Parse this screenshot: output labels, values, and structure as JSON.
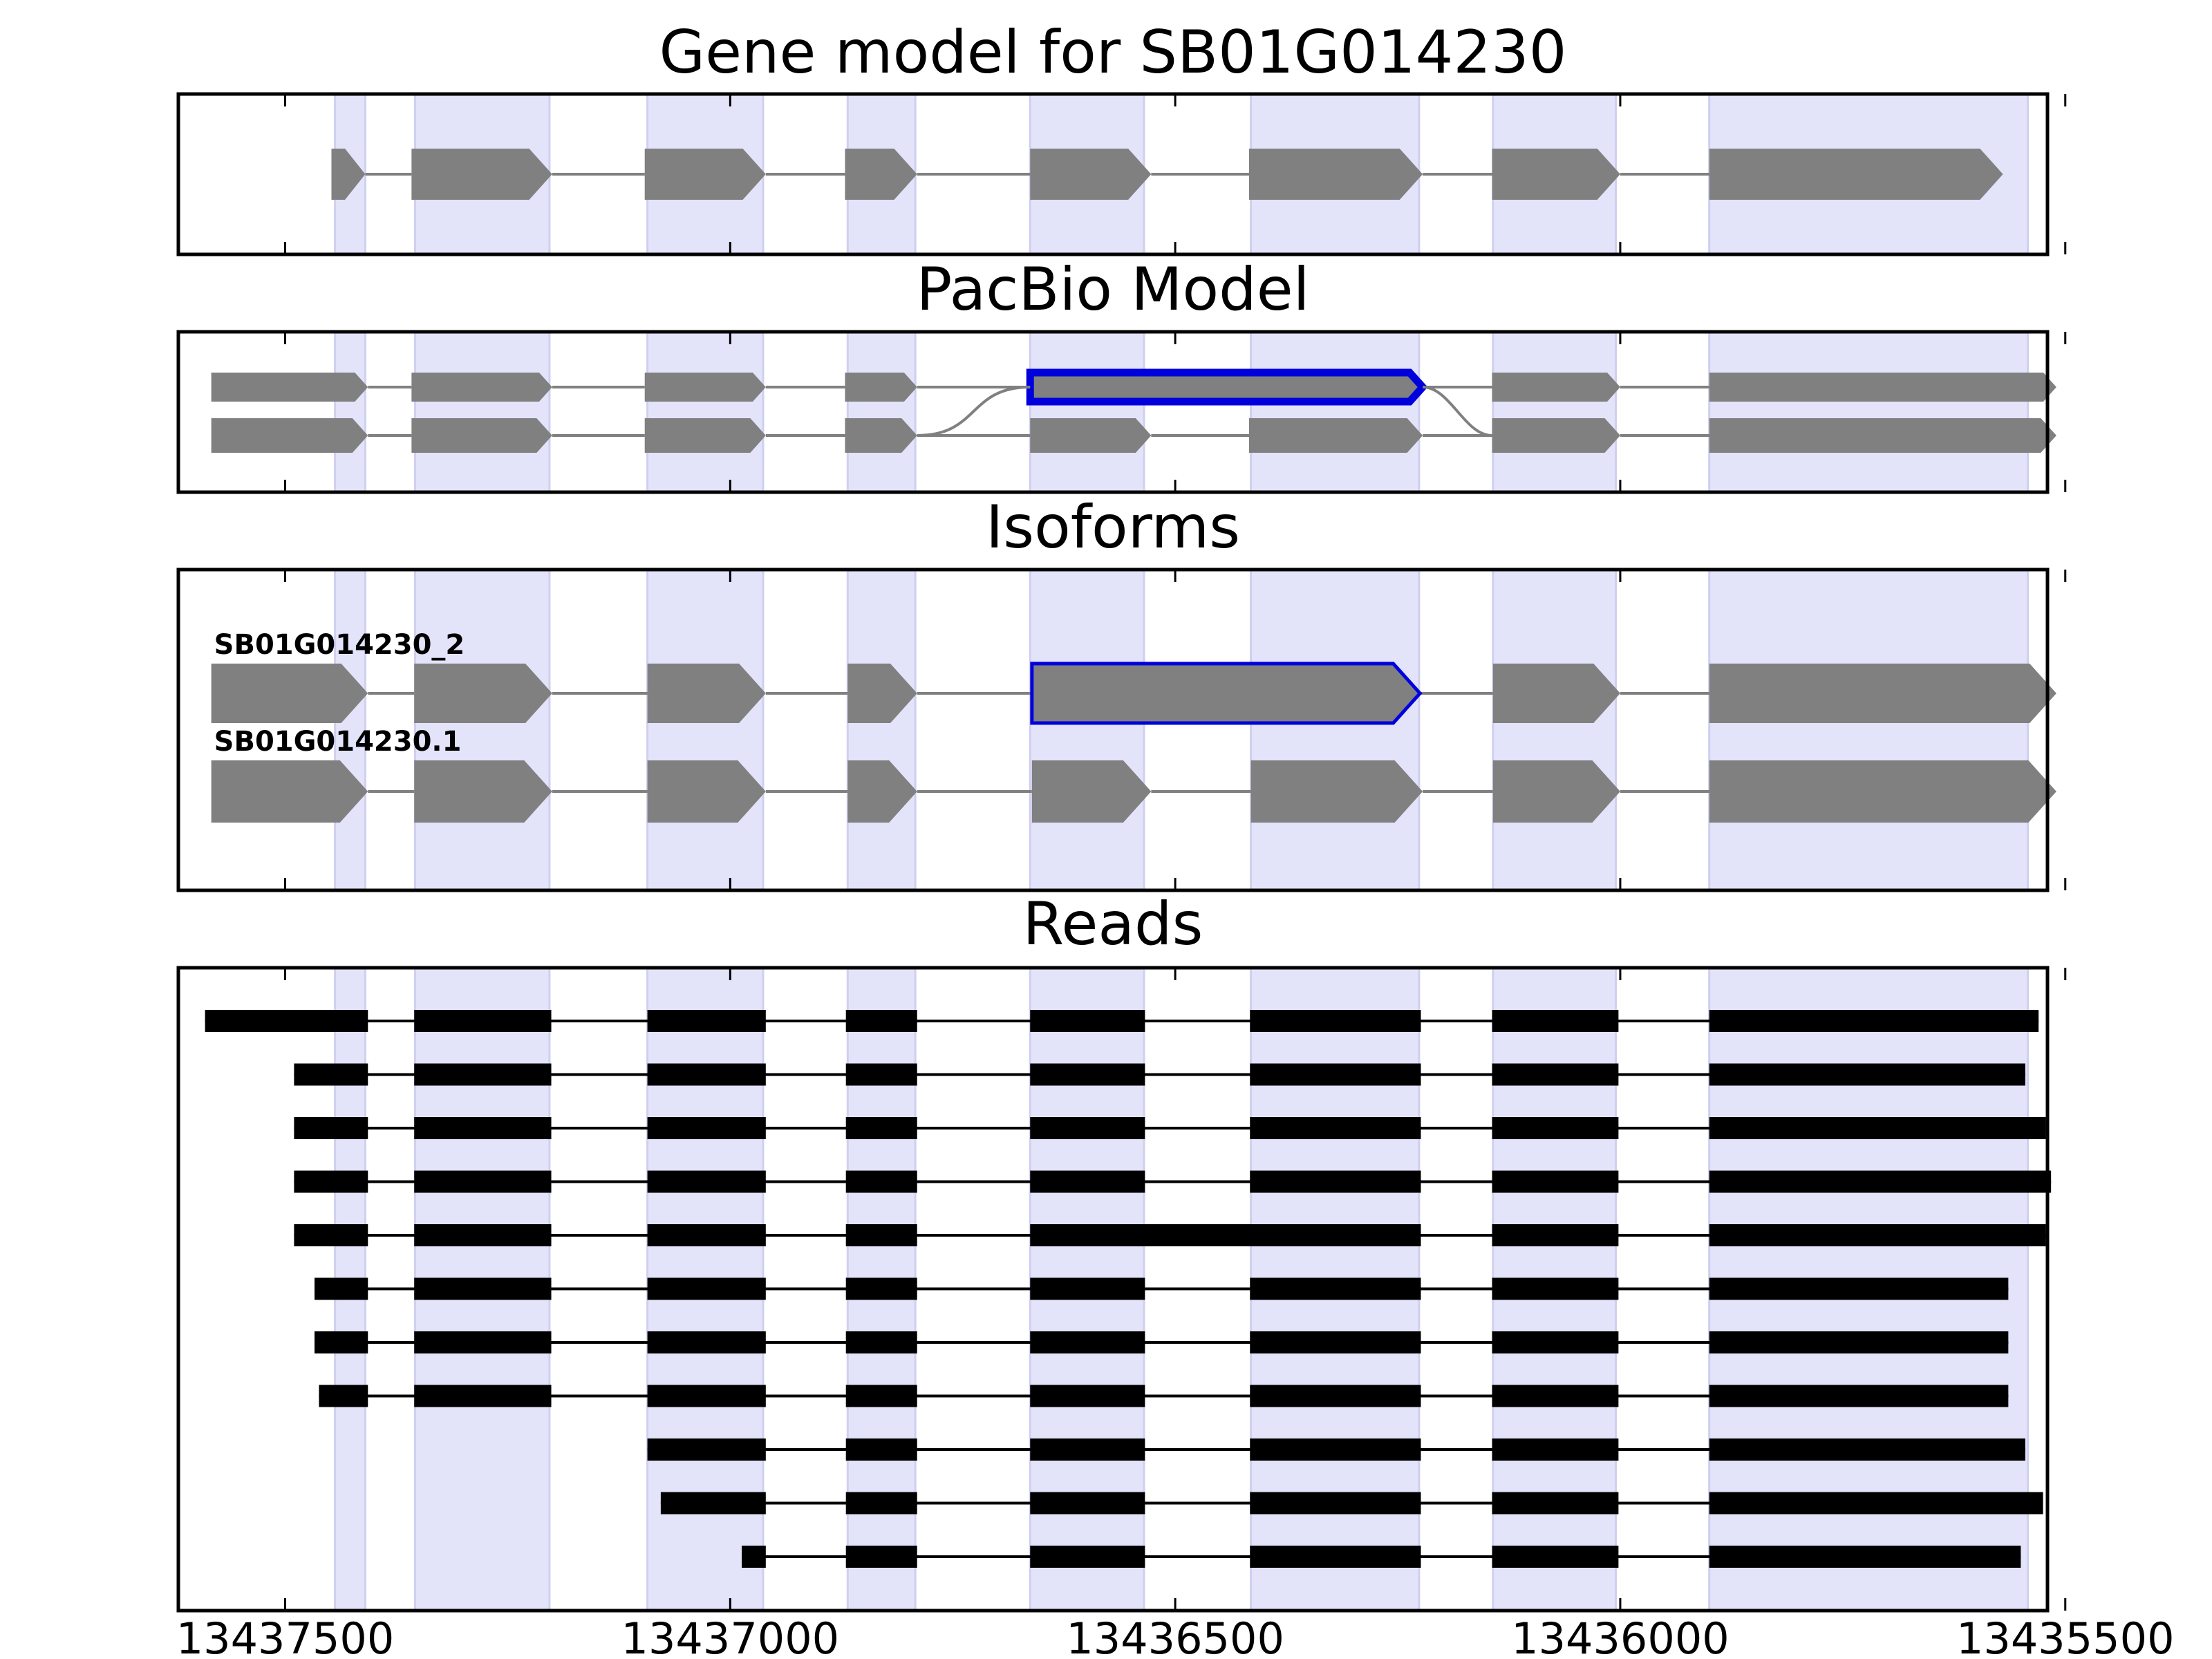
{
  "chart_data": {
    "type": "gene-structure",
    "x_reversed": true,
    "xlim": [
      13437620,
      13435520
    ],
    "xticks": [
      13437500,
      13437000,
      13436500,
      13436000,
      13435500
    ],
    "xtick_labels": [
      "13437500",
      "13437000",
      "13436500",
      "13436000",
      "13435500"
    ],
    "exon_band_color": "#e3e3fa",
    "exon_fill_color": "#808080",
    "highlight_color": "#0000dd",
    "read_color": "#000000",
    "exon_bands": [
      [
        13437444,
        13437410
      ],
      [
        13437354,
        13437203
      ],
      [
        13437093,
        13436963
      ],
      [
        13436868,
        13436792
      ],
      [
        13436663,
        13436535
      ],
      [
        13436415,
        13436226
      ],
      [
        13436143,
        13436005
      ],
      [
        13435900,
        13435542
      ]
    ],
    "panels": [
      {
        "title": "Gene model for SB01G014230",
        "tracks": [
          {
            "label": "",
            "highlight_exon": -1,
            "exons": [
              [
                13437448,
                13437410
              ],
              [
                13437358,
                13437200
              ],
              [
                13437096,
                13436960
              ],
              [
                13436871,
                13436790
              ],
              [
                13436663,
                13436527
              ],
              [
                13436417,
                13436222
              ],
              [
                13436144,
                13436000
              ],
              [
                13435900,
                13435570
              ]
            ]
          }
        ]
      },
      {
        "title": "PacBio Model",
        "tracks": [
          {
            "label": "",
            "highlight_exon": -1,
            "exons": [
              [
                13437583,
                13437407
              ],
              [
                13437358,
                13437200
              ],
              [
                13437096,
                13436960
              ],
              [
                13436871,
                13436790
              ],
              [
                13436663,
                13436527
              ],
              [
                13436417,
                13436222
              ],
              [
                13436144,
                13436000
              ],
              [
                13435900,
                13435510
              ]
            ]
          },
          {
            "label": "",
            "highlight_exon": 4,
            "exons": [
              [
                13437583,
                13437407
              ],
              [
                13437358,
                13437200
              ],
              [
                13437096,
                13436960
              ],
              [
                13436871,
                13436790
              ],
              [
                13436663,
                13436222
              ],
              [
                13436144,
                13436000
              ],
              [
                13435900,
                13435510
              ]
            ]
          }
        ]
      },
      {
        "title": "Isoforms",
        "tracks": [
          {
            "label": "SB01G014230.1",
            "highlight_exon": -1,
            "exons": [
              [
                13437583,
                13437407
              ],
              [
                13437355,
                13437200
              ],
              [
                13437093,
                13436960
              ],
              [
                13436868,
                13436790
              ],
              [
                13436661,
                13436527
              ],
              [
                13436415,
                13436222
              ],
              [
                13436143,
                13436000
              ],
              [
                13435900,
                13435510
              ]
            ]
          },
          {
            "label": "SB01G014230_2",
            "highlight_exon": 4,
            "exons": [
              [
                13437583,
                13437407
              ],
              [
                13437355,
                13437200
              ],
              [
                13437093,
                13436960
              ],
              [
                13436868,
                13436790
              ],
              [
                13436661,
                13436225
              ],
              [
                13436143,
                13436000
              ],
              [
                13435900,
                13435510
              ]
            ]
          }
        ]
      },
      {
        "title": "Reads",
        "reads": [
          {
            "exons": [
              [
                13437590,
                13437407
              ],
              [
                13437355,
                13437201
              ],
              [
                13437093,
                13436960
              ],
              [
                13436870,
                13436790
              ],
              [
                13436663,
                13436534
              ],
              [
                13436416,
                13436224
              ],
              [
                13436144,
                13436002
              ],
              [
                13435900,
                13435530
              ]
            ]
          },
          {
            "exons": [
              [
                13437490,
                13437407
              ],
              [
                13437355,
                13437201
              ],
              [
                13437093,
                13436960
              ],
              [
                13436870,
                13436790
              ],
              [
                13436663,
                13436534
              ],
              [
                13436416,
                13436224
              ],
              [
                13436144,
                13436002
              ],
              [
                13435900,
                13435545
              ]
            ]
          },
          {
            "exons": [
              [
                13437490,
                13437407
              ],
              [
                13437355,
                13437201
              ],
              [
                13437093,
                13436960
              ],
              [
                13436870,
                13436790
              ],
              [
                13436663,
                13436534
              ],
              [
                13436416,
                13436224
              ],
              [
                13436144,
                13436002
              ],
              [
                13435900,
                13435522
              ]
            ]
          },
          {
            "exons": [
              [
                13437490,
                13437407
              ],
              [
                13437355,
                13437201
              ],
              [
                13437093,
                13436960
              ],
              [
                13436870,
                13436790
              ],
              [
                13436663,
                13436534
              ],
              [
                13436416,
                13436224
              ],
              [
                13436144,
                13436002
              ],
              [
                13435900,
                13435516
              ]
            ]
          },
          {
            "exons": [
              [
                13437490,
                13437407
              ],
              [
                13437355,
                13437201
              ],
              [
                13437093,
                13436960
              ],
              [
                13436870,
                13436790
              ],
              [
                13436663,
                13436224
              ],
              [
                13436144,
                13436002
              ],
              [
                13435900,
                13435522
              ]
            ]
          },
          {
            "exons": [
              [
                13437467,
                13437407
              ],
              [
                13437355,
                13437201
              ],
              [
                13437093,
                13436960
              ],
              [
                13436870,
                13436790
              ],
              [
                13436663,
                13436534
              ],
              [
                13436416,
                13436224
              ],
              [
                13436144,
                13436002
              ],
              [
                13435900,
                13435564
              ]
            ]
          },
          {
            "exons": [
              [
                13437467,
                13437407
              ],
              [
                13437355,
                13437201
              ],
              [
                13437093,
                13436960
              ],
              [
                13436870,
                13436790
              ],
              [
                13436663,
                13436534
              ],
              [
                13436416,
                13436224
              ],
              [
                13436144,
                13436002
              ],
              [
                13435900,
                13435564
              ]
            ]
          },
          {
            "exons": [
              [
                13437462,
                13437407
              ],
              [
                13437355,
                13437201
              ],
              [
                13437093,
                13436960
              ],
              [
                13436870,
                13436790
              ],
              [
                13436663,
                13436534
              ],
              [
                13436416,
                13436224
              ],
              [
                13436144,
                13436002
              ],
              [
                13435900,
                13435564
              ]
            ]
          },
          {
            "exons": [
              [
                13437093,
                13436960
              ],
              [
                13436870,
                13436790
              ],
              [
                13436663,
                13436534
              ],
              [
                13436416,
                13436224
              ],
              [
                13436144,
                13436002
              ],
              [
                13435900,
                13435545
              ]
            ]
          },
          {
            "exons": [
              [
                13437078,
                13436960
              ],
              [
                13436870,
                13436790
              ],
              [
                13436663,
                13436534
              ],
              [
                13436416,
                13436224
              ],
              [
                13436144,
                13436002
              ],
              [
                13435900,
                13435525
              ]
            ]
          },
          {
            "exons": [
              [
                13436987,
                13436960
              ],
              [
                13436870,
                13436790
              ],
              [
                13436663,
                13436534
              ],
              [
                13436416,
                13436224
              ],
              [
                13436144,
                13436002
              ],
              [
                13435900,
                13435550
              ]
            ]
          }
        ]
      }
    ]
  }
}
